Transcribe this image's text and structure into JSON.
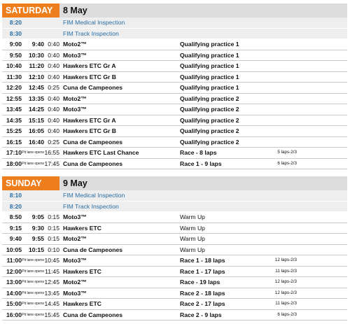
{
  "colors": {
    "day_label_bg": "#ee7d1b",
    "date_bg": "#dcdcdc",
    "inspection_text": "#2a6ea6"
  },
  "days": [
    {
      "day": "SATURDAY",
      "date": "8 May",
      "inspections": [
        {
          "time": "8:20",
          "label": "FIM Medical Inspection"
        },
        {
          "time": "8:30",
          "label": "FIM Track Inspection"
        }
      ],
      "sessions": [
        {
          "start": "9:00",
          "end": "9:40",
          "duration": "0:40",
          "event": "Moto2™",
          "session": "Qualifying practice 1",
          "laps": ""
        },
        {
          "start": "9:50",
          "end": "10:30",
          "duration": "0:40",
          "event": "Moto3™",
          "session": "Qualifying practice 1",
          "laps": ""
        },
        {
          "start": "10:40",
          "end": "11:20",
          "duration": "0:40",
          "event": "Hawkers ETC Gr A",
          "session": "Qualifying practice 1",
          "laps": ""
        },
        {
          "start": "11:30",
          "end": "12:10",
          "duration": "0:40",
          "event": "Hawkers ETC Gr B",
          "session": "Qualifying practice 1",
          "laps": ""
        },
        {
          "start": "12:20",
          "end": "12:45",
          "duration": "0:25",
          "event": "Cuna de Campeones",
          "session": "Qualifying practice 1",
          "laps": ""
        },
        {
          "start": "12:55",
          "end": "13:35",
          "duration": "0:40",
          "event": "Moto2™",
          "session": "Qualifying practice 2",
          "laps": ""
        },
        {
          "start": "13:45",
          "end": "14:25",
          "duration": "0:40",
          "event": "Moto3™",
          "session": "Qualifying practice 2",
          "laps": ""
        },
        {
          "start": "14:35",
          "end": "15:15",
          "duration": "0:40",
          "event": "Hawkers ETC Gr A",
          "session": "Qualifying practice 2",
          "laps": ""
        },
        {
          "start": "15:25",
          "end": "16:05",
          "duration": "0:40",
          "event": "Hawkers ETC Gr B",
          "session": "Qualifying practice 2",
          "laps": ""
        },
        {
          "start": "16:15",
          "end": "16:40",
          "duration": "0:25",
          "event": "Cuna de Campeones",
          "session": "Qualifying practice 2",
          "laps": ""
        },
        {
          "start": "17:10",
          "pit": "Pit lane opens",
          "duration": "16:55",
          "event": "Hawkers ETC Last Chance",
          "session": "Race - 8 laps",
          "laps": "5 laps-2/3"
        },
        {
          "start": "18:00",
          "pit": "Pit lane opens",
          "duration": "17:45",
          "event": "Cuna de Campeones",
          "session": "Race 1 - 9 laps",
          "laps": "6 laps-2/3"
        }
      ]
    },
    {
      "day": "SUNDAY",
      "date": "9 May",
      "inspections": [
        {
          "time": "8:10",
          "label": "FIM Medical Inspection"
        },
        {
          "time": "8:20",
          "label": "FIM Track Inspection"
        }
      ],
      "sessions": [
        {
          "start": "8:50",
          "end": "9:05",
          "duration": "0:15",
          "event": "Moto3™",
          "session": "Warm Up",
          "laps": ""
        },
        {
          "start": "9:15",
          "end": "9:30",
          "duration": "0:15",
          "event": "Hawkers ETC",
          "session": "Warm Up",
          "laps": ""
        },
        {
          "start": "9:40",
          "end": "9:55",
          "duration": "0:15",
          "event": "Moto2™",
          "session": "Warm Up",
          "laps": ""
        },
        {
          "start": "10:05",
          "end": "10:15",
          "duration": "0:10",
          "event": "Cuna de Campeones",
          "session": "Warm Up",
          "laps": ""
        },
        {
          "start": "11:00",
          "pit": "Pit lane opens",
          "duration": "10:45",
          "event": "Moto3™",
          "session": "Race 1 - 18 laps",
          "laps": "12 laps-2/3"
        },
        {
          "start": "12:00",
          "pit": "Pit lane opens",
          "duration": "11:45",
          "event": "Hawkers ETC",
          "session": "Race 1 - 17 laps",
          "laps": "11 laps-2/3"
        },
        {
          "start": "13:00",
          "pit": "Pit lane opens",
          "duration": "12:45",
          "event": "Moto2™",
          "session": "Race - 19 laps",
          "laps": "12 laps-2/3"
        },
        {
          "start": "14:00",
          "pit": "Pit lane opens",
          "duration": "13:45",
          "event": "Moto3™",
          "session": "Race 2 - 18 laps",
          "laps": "12 laps-2/3"
        },
        {
          "start": "15:00",
          "pit": "Pit lane opens",
          "duration": "14:45",
          "event": "Hawkers ETC",
          "session": "Race 2 - 17 laps",
          "laps": "11 laps-2/3"
        },
        {
          "start": "16:00",
          "pit": "Pit lane opens",
          "duration": "15:45",
          "event": "Cuna de Campeones",
          "session": "Race 2 - 9 laps",
          "laps": "6 laps-2/3"
        }
      ]
    }
  ]
}
